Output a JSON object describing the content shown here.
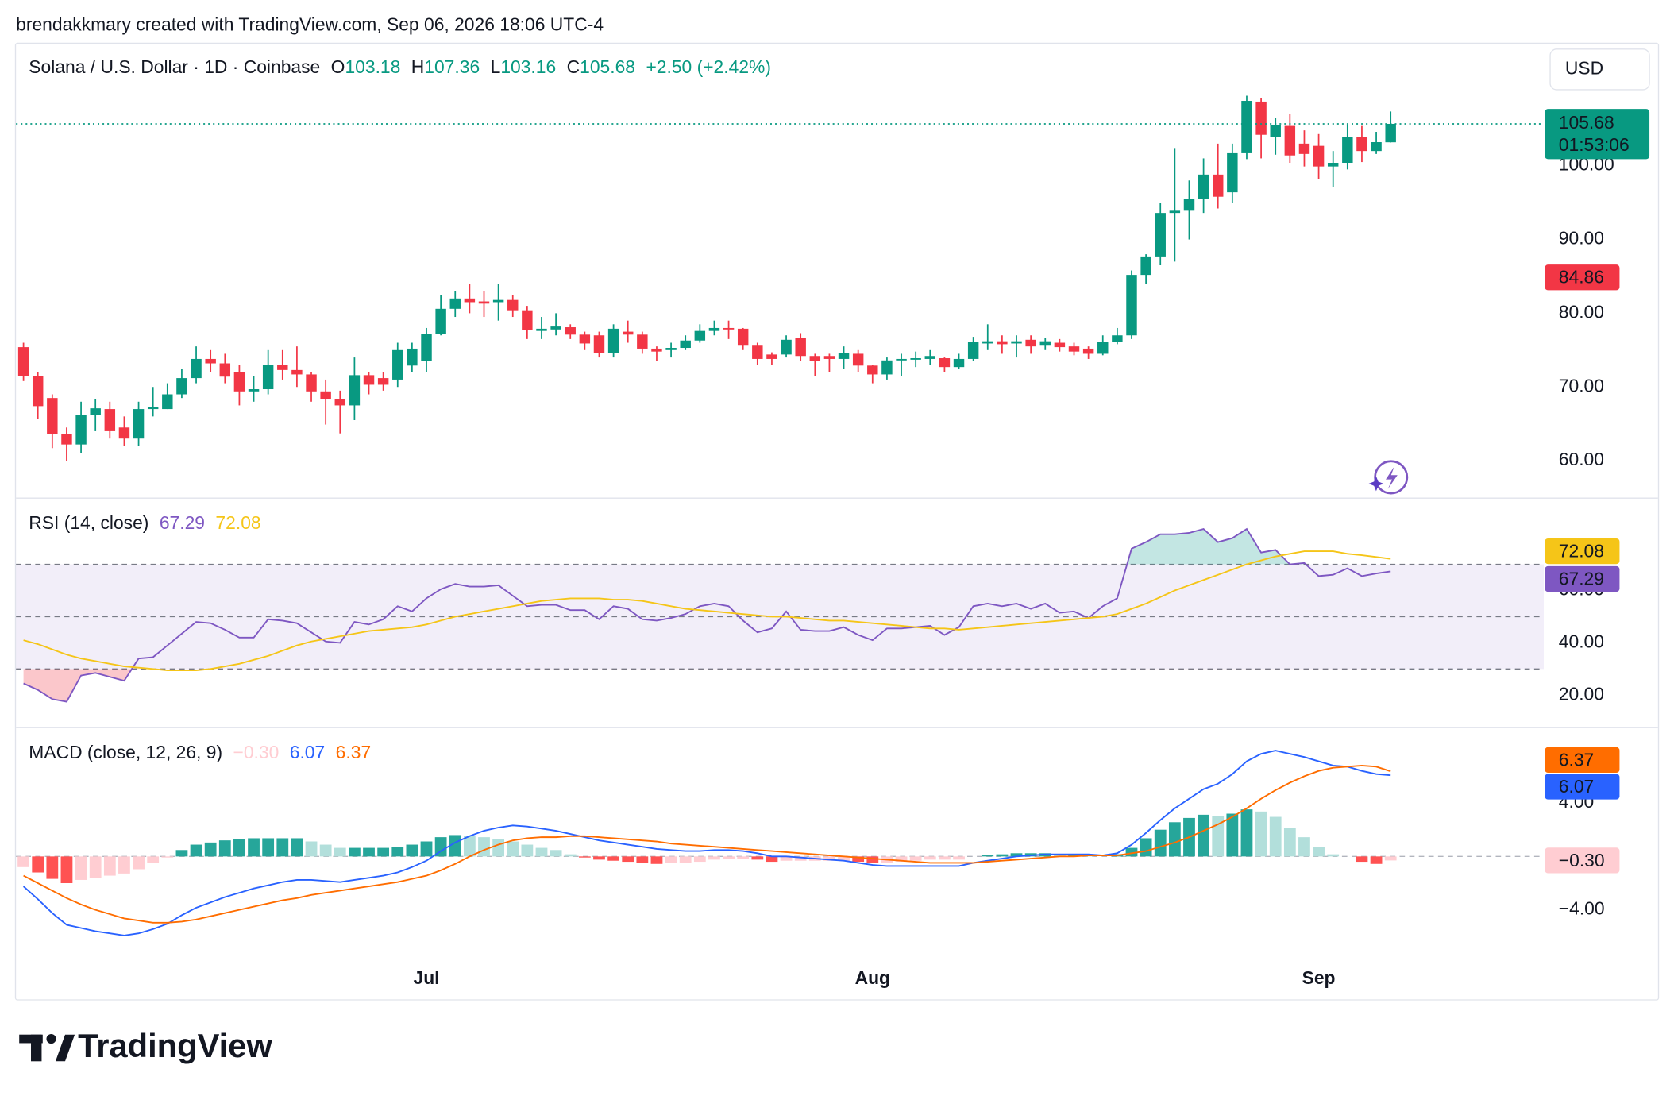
{
  "header": {
    "attribution": "brendakkmary created with TradingView.com, Sep 06, 2026 18:06 UTC-4",
    "brand": "TradingView"
  },
  "chart_data": [
    {
      "type": "candlestick",
      "title": "Solana / U.S. Dollar · 1D · Coinbase",
      "ohlc_labels": [
        "O",
        "H",
        "L",
        "C"
      ],
      "change": "+2.50 (+2.42%)",
      "currency": "USD",
      "countdown": "01:53:06",
      "open": [
        75.4,
        71.5,
        68.5,
        63.6,
        62.2,
        66.2,
        67,
        64.5,
        63,
        67,
        67,
        69,
        71.2,
        73.8,
        73.2,
        72,
        69.4,
        69.7,
        73,
        72.3,
        71.7,
        69.4,
        68.3,
        67.5,
        71.6,
        71.2,
        71,
        72.9,
        73.5,
        77.2,
        80.6,
        82,
        81.6,
        81.5,
        81.8,
        80.4,
        77.6,
        77.8,
        78.1,
        77.1,
        77,
        74.6,
        77.5,
        77.1,
        75.2,
        75,
        75.3,
        76.3,
        77.6,
        78,
        77.9,
        75.6,
        74.4,
        74.4,
        76.7,
        74.2,
        74.2,
        73.8,
        74.5,
        72.9,
        71.7,
        73.6,
        73.7,
        73.8,
        73.9,
        72.7,
        73.8,
        75.9,
        76.2,
        75.9,
        76.4,
        75.6,
        76,
        75.5,
        75.2,
        74.5,
        76.1,
        77,
        85.2,
        87.7,
        93.6,
        93.9,
        95.5,
        98.8,
        96.4,
        101.7,
        108.7,
        103.9,
        105.4,
        103,
        102.7,
        99.9,
        100.4,
        103.9,
        102,
        103.18
      ],
      "high": [
        76,
        72,
        69,
        64.5,
        68,
        68.3,
        68,
        66,
        68,
        70,
        70.5,
        72.5,
        75.5,
        75,
        74.5,
        73,
        71.5,
        75,
        75,
        75.5,
        72,
        71,
        69.5,
        74,
        72,
        72,
        76,
        76,
        78,
        82.5,
        83,
        84,
        83,
        84,
        82.5,
        81,
        79.5,
        80,
        78.5,
        77.5,
        77.5,
        78.5,
        79,
        77.5,
        75.5,
        76,
        77,
        78.5,
        79,
        79,
        78,
        76,
        74.7,
        77,
        77.3,
        74.5,
        74.5,
        75.5,
        75,
        73,
        74,
        74.5,
        74.8,
        75,
        74,
        74.5,
        76.8,
        78.5,
        77,
        77,
        77,
        76.7,
        76.5,
        76,
        75.5,
        77,
        78,
        85.8,
        88,
        95,
        102.4,
        98,
        101,
        103,
        103,
        109.5,
        109.2,
        106.5,
        107,
        104.8,
        104.3,
        102,
        105.6,
        105.4,
        104.6,
        107.36
      ],
      "low": [
        70.8,
        65.7,
        61.7,
        59.9,
        61,
        64,
        63,
        62,
        62,
        66,
        67,
        68.5,
        70.5,
        72,
        70.5,
        67.5,
        68,
        69,
        71,
        70,
        68,
        64.9,
        63.7,
        65.5,
        69,
        69.5,
        70,
        72,
        72,
        77,
        79.5,
        80,
        79.5,
        79,
        79.5,
        76.5,
        76.5,
        77,
        76.5,
        75,
        74,
        74,
        76,
        74.5,
        73.5,
        74,
        75,
        76,
        77,
        76.5,
        75,
        73,
        73,
        74,
        73.5,
        71.5,
        72,
        72.5,
        72,
        70.5,
        71,
        71.5,
        72.7,
        73,
        72,
        72.5,
        73.5,
        75,
        74.5,
        74,
        74.5,
        75,
        74.8,
        74.3,
        73.8,
        74.3,
        75.8,
        76.5,
        84,
        86.5,
        87,
        90,
        93.6,
        94.2,
        95,
        100.9,
        101,
        101.5,
        100.4,
        99.9,
        98.2,
        97.1,
        99.5,
        100.5,
        101.6,
        103.16
      ],
      "close": [
        71.5,
        67.4,
        63.6,
        62.2,
        66.2,
        67.1,
        64,
        63,
        67,
        67.3,
        69,
        71.2,
        73.8,
        73.2,
        71.4,
        69.4,
        69.7,
        73,
        72.3,
        71.7,
        69.4,
        68.3,
        67.5,
        71.6,
        70.3,
        70.3,
        75,
        75.2,
        77.2,
        80.6,
        82,
        81.5,
        81.3,
        81.8,
        80.4,
        77.7,
        77.9,
        78.2,
        77.1,
        75.9,
        74.6,
        77.9,
        77.1,
        75.2,
        74.8,
        75.3,
        76.3,
        77.6,
        78,
        77.8,
        75.6,
        73.8,
        73.8,
        76.4,
        74.2,
        73.5,
        73.8,
        74.6,
        72.9,
        71.7,
        73.6,
        73.8,
        73.9,
        74.2,
        72.7,
        73.8,
        76.1,
        76.2,
        75.8,
        76.2,
        75.5,
        76.2,
        75.4,
        74.8,
        74.5,
        76.1,
        77,
        85.2,
        87.7,
        93.6,
        93.9,
        95.5,
        98.8,
        95.8,
        101.7,
        108.8,
        104.2,
        105.5,
        101.4,
        101.6,
        99.9,
        100.4,
        103.9,
        102,
        103.2,
        105.68
      ],
      "up_color": "#089981",
      "down_color": "#f23645",
      "ylim": [
        55,
        116.4
      ],
      "yticks": [
        {
          "value": 60,
          "label": "60.00"
        },
        {
          "value": 70,
          "label": "70.00"
        },
        {
          "value": 80,
          "label": "80.00"
        },
        {
          "value": 90,
          "label": "90.00"
        },
        {
          "value": 100,
          "label": "100.00"
        }
      ],
      "price_lines": [
        {
          "value": 84.86,
          "color": "#f23645"
        }
      ]
    },
    {
      "type": "rsi",
      "title": "RSI (14, close)",
      "series": [
        {
          "color": "#7e57c2",
          "values": [
            24.5,
            22,
            18.5,
            17.5,
            27.5,
            28.5,
            27,
            25.5,
            34,
            34.5,
            39,
            43.5,
            48,
            47.5,
            45,
            42,
            42,
            49,
            48.5,
            47.5,
            44,
            40.5,
            40,
            48,
            47,
            49,
            54,
            52,
            57,
            60.5,
            62.5,
            61.5,
            61.5,
            62,
            58,
            54,
            54.5,
            54.5,
            52.5,
            52.5,
            49,
            54,
            53,
            49,
            48.5,
            49.5,
            51,
            54,
            55,
            54,
            48.5,
            44,
            45.5,
            52,
            45,
            44.5,
            44.5,
            46,
            43,
            41,
            45.5,
            45.5,
            46,
            46.5,
            43,
            46,
            54,
            55,
            54,
            55,
            53,
            55,
            51.5,
            52,
            49.5,
            54,
            57,
            76,
            78.5,
            81.5,
            81.5,
            82,
            83.5,
            78.5,
            80,
            83.5,
            74.5,
            75.5,
            70,
            70.5,
            65.5,
            66,
            68.5,
            65.5,
            66.5,
            67.29
          ]
        },
        {
          "color": "#f5c518",
          "values": [
            41,
            39.5,
            37.5,
            35.5,
            34,
            33,
            32,
            31,
            30.5,
            30,
            29.5,
            29.5,
            29.5,
            30,
            31,
            32,
            33.5,
            35,
            37,
            39,
            40.5,
            41.5,
            42.5,
            43.5,
            44.5,
            45,
            45.5,
            46,
            47,
            48.5,
            50,
            51,
            52,
            53,
            54,
            55,
            56,
            56.5,
            57,
            57,
            57,
            56.5,
            56.5,
            56,
            55,
            54,
            53,
            52.5,
            52,
            51.5,
            51,
            50.5,
            50,
            50,
            49.5,
            49,
            48.5,
            48.5,
            48,
            47.5,
            47,
            46.5,
            46,
            45.5,
            45.5,
            45,
            45.5,
            46,
            46.5,
            47,
            47.5,
            48,
            48.5,
            49,
            49.5,
            50,
            51,
            53,
            55,
            57.5,
            60,
            62,
            64,
            66,
            68,
            70,
            71.5,
            73,
            74,
            75,
            75,
            75,
            74,
            73.5,
            72.8,
            72.08
          ]
        }
      ],
      "ylim": [
        7.8,
        95.1
      ],
      "yticks": [
        {
          "value": 20,
          "label": "20.00"
        },
        {
          "value": 40,
          "label": "40.00"
        },
        {
          "value": 60,
          "label": "60.00"
        }
      ],
      "levels": [
        30,
        50,
        70
      ],
      "band_color": "#7e57c2",
      "overbought_color": "#26a69a",
      "oversold_color": "#f23645"
    },
    {
      "type": "macd",
      "title": "MACD (close, 12, 26, 9)",
      "categories": [
        null,
        null,
        null,
        null,
        null,
        null,
        null,
        null,
        null,
        null,
        null,
        null,
        null,
        null,
        null,
        null,
        null,
        null,
        null,
        null,
        null,
        null,
        null,
        null,
        null,
        null,
        null,
        null,
        "Jul",
        null,
        null,
        null,
        null,
        null,
        null,
        null,
        null,
        null,
        null,
        null,
        null,
        null,
        null,
        null,
        null,
        null,
        null,
        null,
        null,
        null,
        null,
        null,
        null,
        null,
        null,
        null,
        null,
        null,
        null,
        "Aug",
        null,
        null,
        null,
        null,
        null,
        null,
        null,
        null,
        null,
        null,
        null,
        null,
        null,
        null,
        null,
        null,
        null,
        null,
        null,
        null,
        null,
        null,
        null,
        null,
        null,
        null,
        null,
        null,
        null,
        null,
        "Sep",
        null,
        null,
        null,
        null,
        null
      ],
      "series": [
        {
          "kind": "bar",
          "colors": [
            "#26a69a",
            "#b2dfdb",
            "#ffcdd2",
            "#ff5252"
          ],
          "values": [
            -0.8,
            -1.2,
            -1.68,
            -2.0,
            -1.76,
            -1.6,
            -1.44,
            -1.28,
            -0.96,
            -0.48,
            -0.08,
            0.48,
            0.88,
            1.04,
            1.2,
            1.28,
            1.36,
            1.36,
            1.36,
            1.36,
            1.12,
            0.88,
            0.64,
            0.64,
            0.64,
            0.64,
            0.72,
            0.88,
            1.12,
            1.44,
            1.6,
            1.52,
            1.44,
            1.28,
            1.12,
            0.88,
            0.64,
            0.48,
            0.16,
            -0.08,
            -0.24,
            -0.32,
            -0.4,
            -0.48,
            -0.56,
            -0.48,
            -0.48,
            -0.4,
            -0.24,
            -0.16,
            -0.16,
            -0.24,
            -0.4,
            -0.32,
            -0.32,
            -0.32,
            -0.32,
            -0.32,
            -0.4,
            -0.48,
            -0.48,
            -0.4,
            -0.32,
            -0.24,
            -0.24,
            -0.24,
            0,
            0.08,
            0.16,
            0.24,
            0.24,
            0.24,
            0.16,
            0.16,
            0.08,
            0,
            0.16,
            0.64,
            1.36,
            2.0,
            2.56,
            2.88,
            3.12,
            3.04,
            3.2,
            3.52,
            3.36,
            2.96,
            2.16,
            1.44,
            0.72,
            0.16,
            0,
            -0.4,
            -0.56,
            -0.3
          ],
          "value_labels": {
            "95": "−0.30"
          }
        },
        {
          "kind": "line",
          "color": "#2962ff",
          "values": [
            -2.24,
            -3.2,
            -4.24,
            -5.12,
            -5.36,
            -5.6,
            -5.76,
            -5.92,
            -5.76,
            -5.44,
            -5.04,
            -4.4,
            -3.84,
            -3.44,
            -3.04,
            -2.72,
            -2.4,
            -2.16,
            -1.92,
            -1.76,
            -1.76,
            -1.84,
            -1.92,
            -1.76,
            -1.6,
            -1.44,
            -1.2,
            -0.8,
            -0.32,
            0.4,
            1.04,
            1.52,
            1.92,
            2.16,
            2.32,
            2.24,
            2.08,
            1.92,
            1.68,
            1.44,
            1.2,
            1.04,
            0.88,
            0.72,
            0.56,
            0.48,
            0.4,
            0.4,
            0.48,
            0.48,
            0.4,
            0.24,
            0,
            0,
            -0.08,
            -0.16,
            -0.24,
            -0.32,
            -0.48,
            -0.64,
            -0.72,
            -0.72,
            -0.72,
            -0.72,
            -0.72,
            -0.72,
            -0.48,
            -0.32,
            -0.16,
            0,
            0.08,
            0.16,
            0.16,
            0.16,
            0.16,
            0.08,
            0.24,
            0.88,
            1.76,
            2.72,
            3.6,
            4.32,
            5.04,
            5.44,
            6.16,
            7.12,
            7.68,
            7.92,
            7.68,
            7.44,
            7.12,
            6.8,
            6.72,
            6.4,
            6.16,
            6.07
          ]
        },
        {
          "kind": "line",
          "color": "#ff6d00",
          "values": [
            -1.44,
            -2.0,
            -2.56,
            -3.12,
            -3.6,
            -4.0,
            -4.32,
            -4.64,
            -4.8,
            -4.96,
            -4.96,
            -4.88,
            -4.72,
            -4.48,
            -4.24,
            -4.0,
            -3.76,
            -3.52,
            -3.28,
            -3.12,
            -2.88,
            -2.72,
            -2.56,
            -2.4,
            -2.24,
            -2.08,
            -1.92,
            -1.68,
            -1.44,
            -1.04,
            -0.56,
            0,
            0.48,
            0.88,
            1.2,
            1.36,
            1.44,
            1.44,
            1.52,
            1.52,
            1.44,
            1.36,
            1.28,
            1.2,
            1.12,
            0.96,
            0.88,
            0.8,
            0.72,
            0.64,
            0.56,
            0.48,
            0.4,
            0.32,
            0.24,
            0.16,
            0.08,
            0,
            -0.08,
            -0.16,
            -0.24,
            -0.32,
            -0.4,
            -0.48,
            -0.48,
            -0.48,
            -0.48,
            -0.4,
            -0.32,
            -0.24,
            -0.16,
            -0.08,
            0,
            0,
            0.08,
            0.08,
            0.08,
            0.24,
            0.4,
            0.72,
            1.04,
            1.44,
            1.92,
            2.4,
            2.96,
            3.6,
            4.32,
            4.96,
            5.52,
            6.0,
            6.4,
            6.64,
            6.72,
            6.8,
            6.72,
            6.37
          ]
        }
      ],
      "ylim": [
        -10.7,
        9.6
      ],
      "yticks": [
        {
          "value": -4,
          "label": "−4.00"
        },
        {
          "value": 4,
          "label": "4.00"
        }
      ],
      "zero_line": true
    }
  ]
}
